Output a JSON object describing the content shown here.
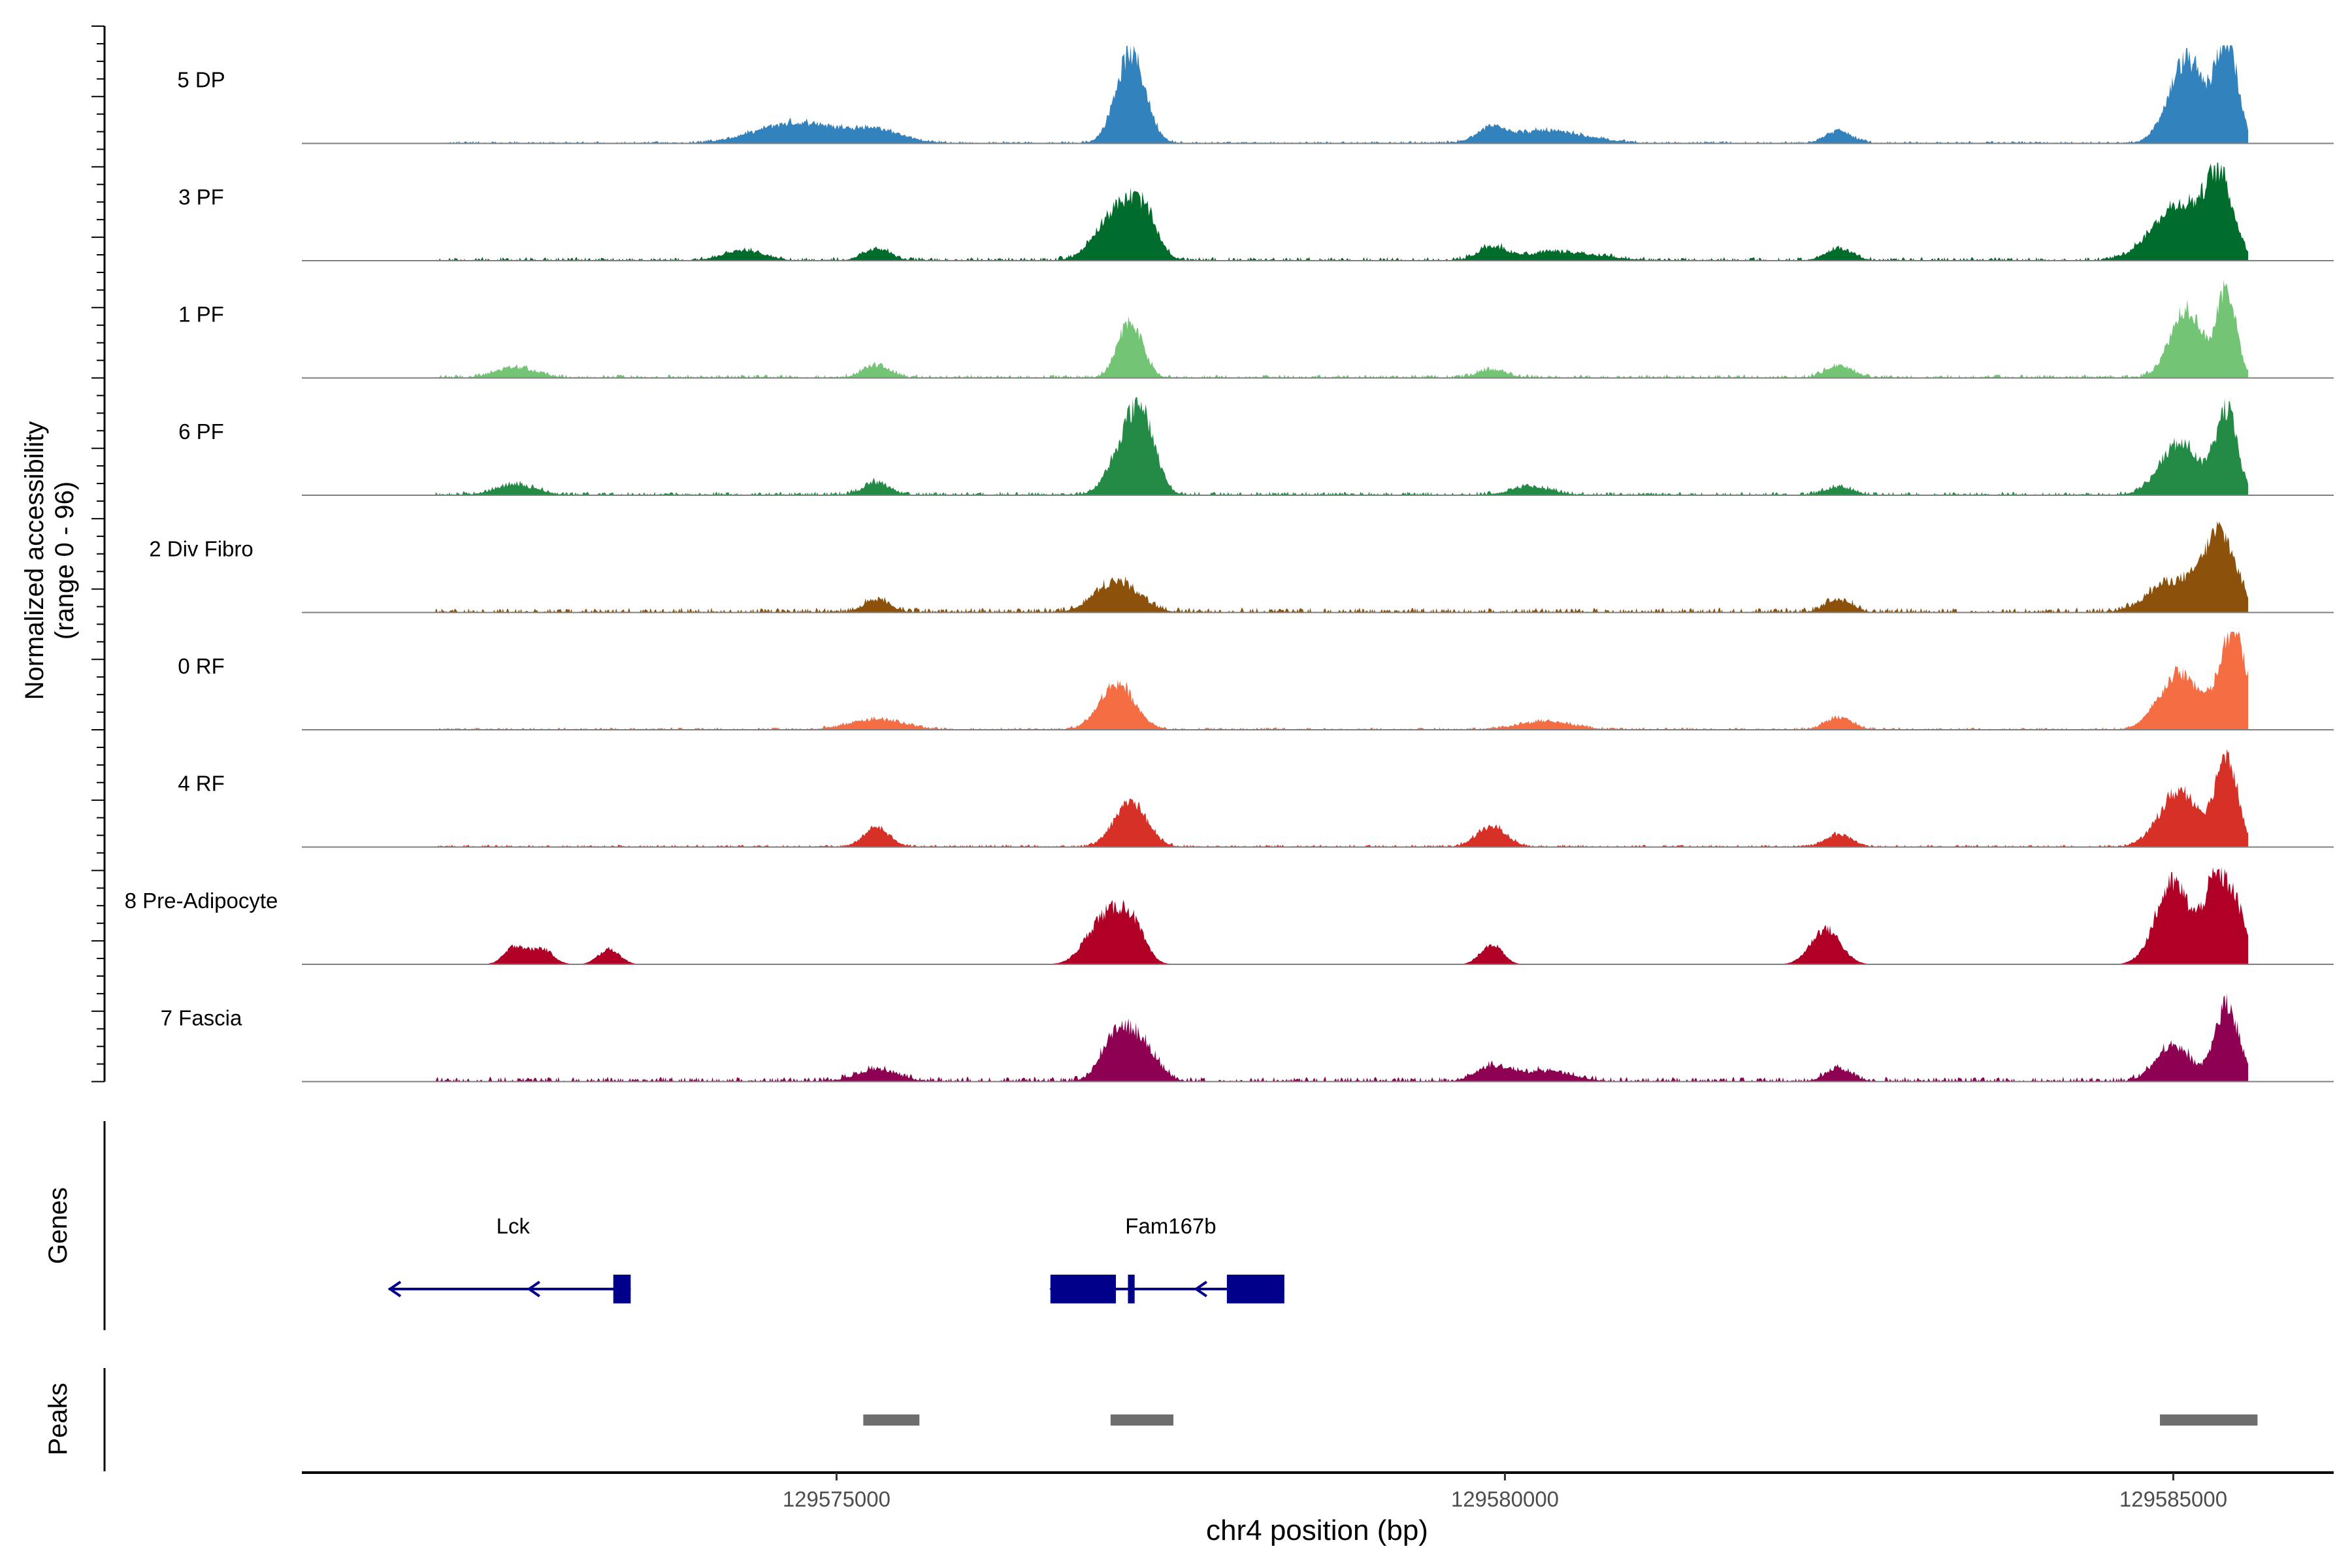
{
  "chart_data": {
    "type": "area",
    "y_axis_label_line1": "Normalized accessibility",
    "y_axis_label_line2": "(range 0 - 96)",
    "y_range": [
      0,
      96
    ],
    "x_axis_label": "chr4 position (bp)",
    "x_range": [
      129571000,
      129586200
    ],
    "x_ticks": [
      {
        "value": 129575000,
        "label": "129575000"
      },
      {
        "value": 129580000,
        "label": "129580000"
      },
      {
        "value": 129585000,
        "label": "129585000"
      }
    ],
    "genes_label": "Genes",
    "peaks_label": "Peaks",
    "tracks": [
      {
        "name": "5 DP",
        "color": "#3182bd",
        "baseline": 2,
        "peaks": [
          [
            129574700,
            300,
            20
          ],
          [
            129575300,
            200,
            12
          ],
          [
            129577200,
            110,
            88
          ],
          [
            129579900,
            100,
            12
          ],
          [
            129580300,
            300,
            12
          ],
          [
            129582500,
            100,
            12
          ],
          [
            129585100,
            130,
            82
          ],
          [
            129585400,
            80,
            100
          ]
        ]
      },
      {
        "name": "3 PF",
        "color": "#006d2c",
        "baseline": 3,
        "peaks": [
          [
            129574300,
            150,
            10
          ],
          [
            129575300,
            100,
            12
          ],
          [
            129577100,
            150,
            50
          ],
          [
            129577300,
            100,
            35
          ],
          [
            129579900,
            100,
            12
          ],
          [
            129580400,
            300,
            8
          ],
          [
            129582500,
            100,
            12
          ],
          [
            129585050,
            200,
            55
          ],
          [
            129585350,
            100,
            70
          ]
        ]
      },
      {
        "name": "1 PF",
        "color": "#74c476",
        "baseline": 3,
        "peaks": [
          [
            129572600,
            150,
            10
          ],
          [
            129575300,
            100,
            12
          ],
          [
            129577200,
            90,
            55
          ],
          [
            129579900,
            100,
            8
          ],
          [
            129582500,
            100,
            12
          ],
          [
            129585100,
            120,
            68
          ],
          [
            129585400,
            70,
            85
          ]
        ]
      },
      {
        "name": "6 PF",
        "color": "#238b45",
        "baseline": 3,
        "peaks": [
          [
            129572600,
            150,
            10
          ],
          [
            129575300,
            100,
            12
          ],
          [
            129577200,
            130,
            60
          ],
          [
            129577300,
            90,
            40
          ],
          [
            129580200,
            150,
            8
          ],
          [
            129582500,
            100,
            8
          ],
          [
            129585050,
            150,
            50
          ],
          [
            129585400,
            80,
            80
          ]
        ]
      },
      {
        "name": "2 Div Fibro",
        "color": "#8c510a",
        "baseline": 4,
        "peaks": [
          [
            129575300,
            100,
            12
          ],
          [
            129577100,
            160,
            30
          ],
          [
            129582500,
            100,
            12
          ],
          [
            129585000,
            180,
            30
          ],
          [
            129585350,
            120,
            75
          ]
        ]
      },
      {
        "name": "0 RF",
        "color": "#f46d43",
        "baseline": 2,
        "peaks": [
          [
            129575300,
            200,
            10
          ],
          [
            129577100,
            130,
            45
          ],
          [
            129580300,
            200,
            8
          ],
          [
            129582500,
            100,
            12
          ],
          [
            129585050,
            150,
            55
          ],
          [
            129585450,
            100,
            95
          ]
        ]
      },
      {
        "name": "4 RF",
        "color": "#d73027",
        "baseline": 2,
        "peaks": [
          [
            129575300,
            100,
            18
          ],
          [
            129577200,
            120,
            45
          ],
          [
            129579900,
            110,
            20
          ],
          [
            129582500,
            100,
            12
          ],
          [
            129585050,
            150,
            55
          ],
          [
            129585400,
            80,
            90
          ]
        ]
      },
      {
        "name": "8 Pre-Adipocyte",
        "color": "#b10026",
        "baseline": 0,
        "peaks": [
          [
            129572600,
            80,
            18
          ],
          [
            129572800,
            80,
            15
          ],
          [
            129573300,
            80,
            15
          ],
          [
            129577000,
            130,
            45
          ],
          [
            129577200,
            100,
            38
          ],
          [
            129579900,
            80,
            20
          ],
          [
            129582400,
            110,
            35
          ],
          [
            129585000,
            130,
            80
          ],
          [
            129585300,
            80,
            65
          ],
          [
            129585450,
            90,
            60
          ]
        ]
      },
      {
        "name": "7 Fascia",
        "color": "#8e0152",
        "baseline": 4,
        "peaks": [
          [
            129575300,
            150,
            12
          ],
          [
            129577100,
            110,
            48
          ],
          [
            129577300,
            110,
            30
          ],
          [
            129579900,
            120,
            14
          ],
          [
            129580300,
            200,
            10
          ],
          [
            129582500,
            100,
            12
          ],
          [
            129585000,
            130,
            35
          ],
          [
            129585400,
            90,
            75
          ]
        ]
      }
    ],
    "genes": [
      {
        "name": "Lck",
        "start": 129571650,
        "end": 129573460,
        "strand": "-",
        "exons": [
          [
            129573330,
            129573460
          ]
        ]
      },
      {
        "name": "Fam167b",
        "start": 129576600,
        "end": 129578350,
        "strand": "-",
        "exons": [
          [
            129576600,
            129577090
          ],
          [
            129577180,
            129577230
          ],
          [
            129577920,
            129578350
          ]
        ]
      }
    ],
    "peak_regions": [
      [
        129575200,
        129575620
      ],
      [
        129577050,
        129577520
      ],
      [
        129584900,
        129585630
      ]
    ]
  }
}
